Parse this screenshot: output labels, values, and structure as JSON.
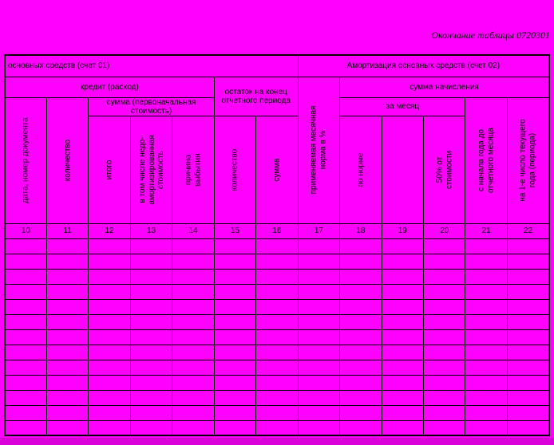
{
  "page": {
    "caption": "Окончание таблицы 0720301",
    "background_color": "#ff00ff",
    "bottom_strip_color": "#da00da",
    "border_color": "#000000"
  },
  "table": {
    "section_left": "основных средств (счет 01)",
    "section_right": "Амортизация основных средств (счет 02)",
    "group_credit": "кредит (расход)",
    "group_balance": "остаток на конец\nотчетного периода",
    "group_sum_initial": "сумма (первоначальная\nстоимость)",
    "group_accrual": "сумма начисления",
    "group_per_month": "за месяц",
    "columns": [
      {
        "num": "10",
        "label": "дата, номер документа"
      },
      {
        "num": "11",
        "label": "количество"
      },
      {
        "num": "12",
        "label": "итого"
      },
      {
        "num": "13",
        "label": "в том числе недо-\nамортизированная\nстоимость"
      },
      {
        "num": "14",
        "label": "причина\nвыбытия"
      },
      {
        "num": "15",
        "label": "количество"
      },
      {
        "num": "16",
        "label": "сумма"
      },
      {
        "num": "17",
        "label": "применяемая месячная\nнорма в %"
      },
      {
        "num": "18",
        "label": "по норме"
      },
      {
        "num": "19",
        "label": ""
      },
      {
        "num": "20",
        "label": "50% от\nстоимости"
      },
      {
        "num": "21",
        "label": "с начала года до\nотчетного месяца"
      },
      {
        "num": "22",
        "label": "на 1-е число текущего\nгода (периода)"
      }
    ],
    "empty_rows": 13,
    "empty_cols": 13
  }
}
